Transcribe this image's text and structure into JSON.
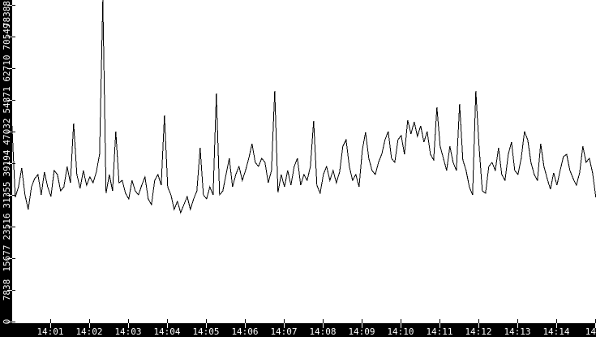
{
  "chart_data": {
    "type": "line",
    "title": "",
    "xlabel": "",
    "ylabel": "",
    "grid": false,
    "legend": "none",
    "colors": {
      "plot_background": "#ffffff",
      "axis_bar": "#000000",
      "axis_text": "#ffffff",
      "line": "#000000"
    },
    "x_axis": {
      "start_time": "14:00",
      "end_time": "14:15",
      "ticks": [
        {
          "minute": 1,
          "label": "14:01"
        },
        {
          "minute": 2,
          "label": "14:02"
        },
        {
          "minute": 3,
          "label": "14:03"
        },
        {
          "minute": 4,
          "label": "14:04"
        },
        {
          "minute": 5,
          "label": "14:05"
        },
        {
          "minute": 6,
          "label": "14:06"
        },
        {
          "minute": 7,
          "label": "14:07"
        },
        {
          "minute": 8,
          "label": "14:08"
        },
        {
          "minute": 9,
          "label": "14:09"
        },
        {
          "minute": 10,
          "label": "14:10"
        },
        {
          "minute": 11,
          "label": "14:11"
        },
        {
          "minute": 12,
          "label": "14:12"
        },
        {
          "minute": 13,
          "label": "14:13"
        },
        {
          "minute": 14,
          "label": "14:14"
        },
        {
          "minute": 15,
          "label": "14"
        }
      ]
    },
    "y_axis": {
      "range": [
        0,
        78388
      ],
      "ticks": [
        {
          "value": 0,
          "label": "0"
        },
        {
          "value": 7838,
          "label": "7838"
        },
        {
          "value": 15677,
          "label": "15677"
        },
        {
          "value": 23516,
          "label": "23516"
        },
        {
          "value": 31355,
          "label": "31355"
        },
        {
          "value": 39194,
          "label": "39194"
        },
        {
          "value": 47032,
          "label": "47032"
        },
        {
          "value": 54871,
          "label": "54871"
        },
        {
          "value": 62710,
          "label": "62710"
        },
        {
          "value": 70549,
          "label": "70549"
        },
        {
          "value": 78388,
          "label": "78388"
        }
      ]
    },
    "series": [
      {
        "name": "value",
        "t0_sec": 1,
        "dt_sec": 5,
        "values": [
          48450,
          30750,
          33350,
          38000,
          31350,
          27750,
          33350,
          35400,
          36400,
          31350,
          37000,
          33350,
          30950,
          37400,
          36400,
          32350,
          33350,
          38400,
          34350,
          49050,
          36400,
          32950,
          37400,
          33750,
          35800,
          34350,
          37000,
          41400,
          79600,
          31750,
          36400,
          32350,
          47050,
          34350,
          34950,
          31750,
          30350,
          34950,
          32350,
          31350,
          33750,
          35800,
          30350,
          28950,
          34950,
          36400,
          33750,
          51050,
          33350,
          31350,
          27750,
          29750,
          26950,
          28950,
          30950,
          27750,
          30350,
          32350,
          43000,
          31350,
          30350,
          33350,
          31350,
          56500,
          31350,
          32350,
          36400,
          40400,
          33350,
          36400,
          38400,
          34950,
          37400,
          40400,
          44000,
          39400,
          38400,
          40400,
          39400,
          34350,
          37400,
          57100,
          31950,
          36400,
          33350,
          37400,
          33750,
          38400,
          40400,
          33750,
          36400,
          34950,
          38400,
          49650,
          33750,
          31750,
          36400,
          38400,
          34950,
          37400,
          34350,
          37000,
          43400,
          45000,
          38400,
          34950,
          36400,
          33350,
          42400,
          46850,
          40400,
          37400,
          36400,
          39400,
          41400,
          45000,
          47050,
          40400,
          39400,
          45000,
          46050,
          41400,
          49850,
          46450,
          49450,
          45850,
          48450,
          44400,
          47050,
          41400,
          40000,
          53050,
          43400,
          40400,
          37400,
          43400,
          39400,
          37400,
          53850,
          40000,
          37400,
          33350,
          31350,
          57100,
          43400,
          32350,
          31750,
          38400,
          39400,
          37400,
          43000,
          36400,
          34950,
          41400,
          44400,
          37400,
          36400,
          40400,
          47050,
          45000,
          39400,
          36400,
          34950,
          44000,
          38400,
          35400,
          32750,
          36800,
          33750,
          37400,
          40800,
          41400,
          37400,
          35400,
          33750,
          36800,
          43400,
          39400,
          40400,
          36800,
          30750
        ]
      }
    ]
  }
}
